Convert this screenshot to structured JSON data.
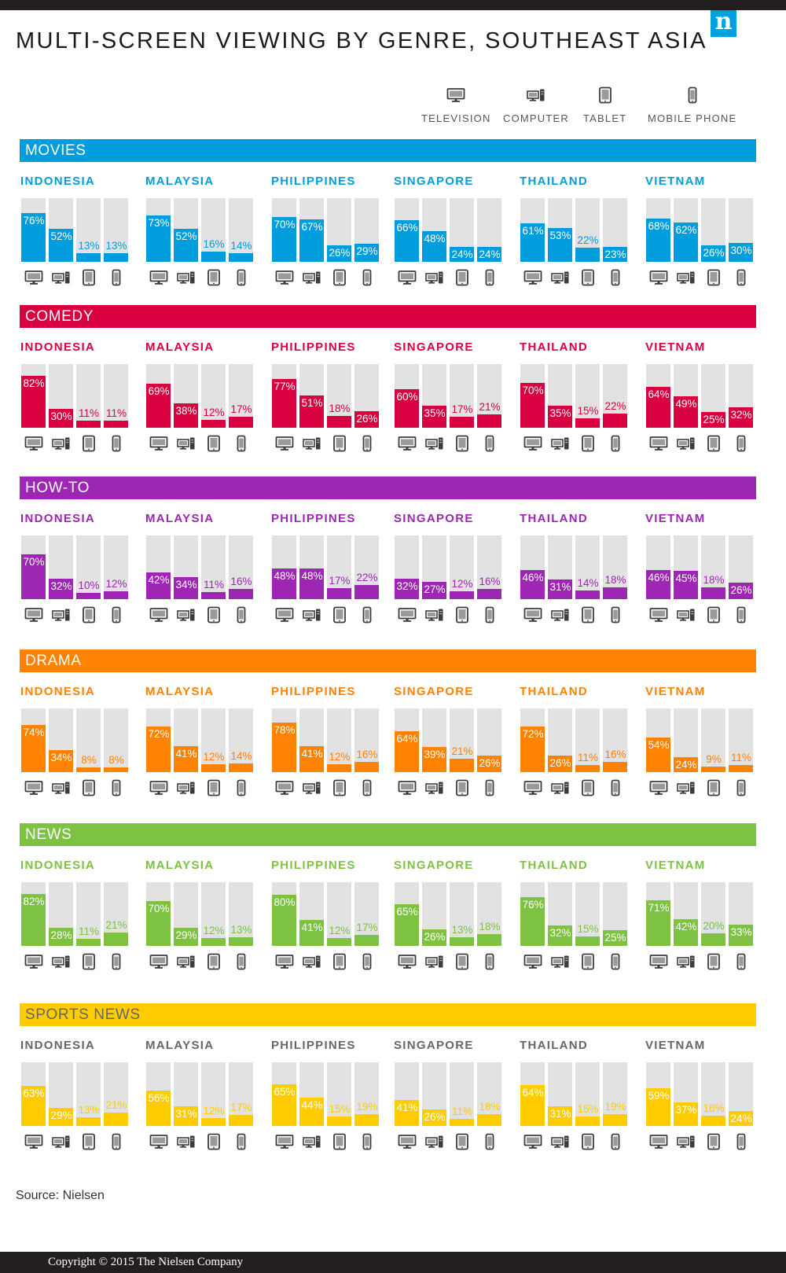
{
  "title": "MULTI-SCREEN VIEWING BY GENRE, SOUTHEAST ASIA",
  "logo": {
    "text": "n",
    "color": "#00a1e0"
  },
  "legend": [
    {
      "label": "TELEVISION",
      "icon": "television-icon"
    },
    {
      "label": "COMPUTER",
      "icon": "computer-icon"
    },
    {
      "label": "TABLET",
      "icon": "tablet-icon"
    },
    {
      "label": "MOBILE PHONE",
      "icon": "mobile-phone-icon"
    }
  ],
  "source": "Source: Nielsen",
  "copyright": "Copyright © 2015 The Nielsen Company",
  "chart_data": {
    "type": "bar",
    "value_unit": "%",
    "ylim": [
      0,
      100
    ],
    "devices": [
      "TELEVISION",
      "COMPUTER",
      "TABLET",
      "MOBILE PHONE"
    ],
    "genres": [
      {
        "name": "MOVIES",
        "color": "#009ddc",
        "countries": [
          {
            "name": "INDONESIA",
            "values": [
              76,
              52,
              13,
              13
            ]
          },
          {
            "name": "MALAYSIA",
            "values": [
              73,
              52,
              16,
              14
            ]
          },
          {
            "name": "PHILIPPINES",
            "values": [
              70,
              67,
              26,
              29
            ]
          },
          {
            "name": "SINGAPORE",
            "values": [
              66,
              48,
              24,
              24
            ]
          },
          {
            "name": "THAILAND",
            "values": [
              61,
              53,
              22,
              23
            ]
          },
          {
            "name": "VIETNAM",
            "values": [
              68,
              62,
              26,
              30
            ]
          }
        ]
      },
      {
        "name": "COMEDY",
        "color": "#d8003f",
        "countries": [
          {
            "name": "INDONESIA",
            "values": [
              82,
              30,
              11,
              11
            ]
          },
          {
            "name": "MALAYSIA",
            "values": [
              69,
              38,
              12,
              17
            ]
          },
          {
            "name": "PHILIPPINES",
            "values": [
              77,
              51,
              18,
              26
            ]
          },
          {
            "name": "SINGAPORE",
            "values": [
              60,
              35,
              17,
              21
            ]
          },
          {
            "name": "THAILAND",
            "values": [
              70,
              35,
              15,
              22
            ]
          },
          {
            "name": "VIETNAM",
            "values": [
              64,
              49,
              25,
              32
            ]
          }
        ]
      },
      {
        "name": "HOW-TO",
        "color": "#9d27b2",
        "countries": [
          {
            "name": "INDONESIA",
            "values": [
              70,
              32,
              10,
              12
            ]
          },
          {
            "name": "MALAYSIA",
            "values": [
              42,
              34,
              11,
              16
            ]
          },
          {
            "name": "PHILIPPINES",
            "values": [
              48,
              48,
              17,
              22
            ]
          },
          {
            "name": "SINGAPORE",
            "values": [
              32,
              27,
              12,
              16
            ]
          },
          {
            "name": "THAILAND",
            "values": [
              46,
              31,
              14,
              18
            ]
          },
          {
            "name": "VIETNAM",
            "values": [
              46,
              45,
              18,
              26
            ]
          }
        ]
      },
      {
        "name": "DRAMA",
        "color": "#ff8200",
        "countries": [
          {
            "name": "INDONESIA",
            "values": [
              74,
              34,
              8,
              8
            ]
          },
          {
            "name": "MALAYSIA",
            "values": [
              72,
              41,
              12,
              14
            ]
          },
          {
            "name": "PHILIPPINES",
            "values": [
              78,
              41,
              12,
              16
            ]
          },
          {
            "name": "SINGAPORE",
            "values": [
              64,
              39,
              21,
              26
            ]
          },
          {
            "name": "THAILAND",
            "values": [
              72,
              26,
              11,
              16
            ]
          },
          {
            "name": "VIETNAM",
            "values": [
              54,
              24,
              9,
              11
            ]
          }
        ]
      },
      {
        "name": "NEWS",
        "color": "#7dc242",
        "countries": [
          {
            "name": "INDONESIA",
            "values": [
              82,
              28,
              11,
              21
            ]
          },
          {
            "name": "MALAYSIA",
            "values": [
              70,
              29,
              12,
              13
            ]
          },
          {
            "name": "PHILIPPINES",
            "values": [
              80,
              41,
              12,
              17
            ]
          },
          {
            "name": "SINGAPORE",
            "values": [
              65,
              26,
              13,
              18
            ]
          },
          {
            "name": "THAILAND",
            "values": [
              76,
              32,
              15,
              25
            ]
          },
          {
            "name": "VIETNAM",
            "values": [
              71,
              42,
              20,
              33
            ]
          }
        ]
      },
      {
        "name": "SPORTS NEWS",
        "color": "#ffcc00",
        "title_color": "#666666",
        "countries": [
          {
            "name": "INDONESIA",
            "values": [
              63,
              29,
              13,
              21
            ]
          },
          {
            "name": "MALAYSIA",
            "values": [
              56,
              31,
              12,
              17
            ]
          },
          {
            "name": "PHILIPPINES",
            "values": [
              65,
              44,
              15,
              19
            ]
          },
          {
            "name": "SINGAPORE",
            "values": [
              41,
              26,
              11,
              18
            ]
          },
          {
            "name": "THAILAND",
            "values": [
              64,
              31,
              15,
              19
            ]
          },
          {
            "name": "VIETNAM",
            "values": [
              59,
              37,
              16,
              24
            ]
          }
        ]
      }
    ]
  }
}
